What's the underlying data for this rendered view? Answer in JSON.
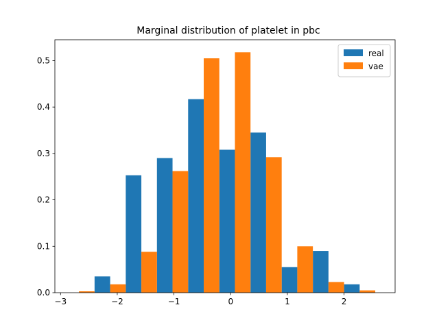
{
  "chart_data": {
    "type": "bar",
    "title": "Marginal distribution of platelet in pbc",
    "xlabel": "",
    "ylabel": "",
    "xlim": [
      -3.1,
      2.9
    ],
    "ylim": [
      0,
      0.545
    ],
    "xticks": [
      -3,
      -2,
      -1,
      0,
      1,
      2
    ],
    "xtick_labels": [
      "−3",
      "−2",
      "−1",
      "0",
      "1",
      "2"
    ],
    "yticks": [
      0.0,
      0.1,
      0.2,
      0.3,
      0.4,
      0.5
    ],
    "ytick_labels": [
      "0.0",
      "0.1",
      "0.2",
      "0.3",
      "0.4",
      "0.5"
    ],
    "grid": false,
    "legend_position": "top-right",
    "bin_edges": [
      -2.95,
      -2.4,
      -1.85,
      -1.3,
      -0.75,
      -0.2,
      0.35,
      0.9,
      1.45,
      2.0,
      2.55
    ],
    "series": [
      {
        "name": "real",
        "color": "#1f77b4",
        "values": [
          0.0,
          0.035,
          0.253,
          0.29,
          0.417,
          0.308,
          0.345,
          0.055,
          0.09,
          0.018
        ]
      },
      {
        "name": "vae",
        "color": "#ff7f0e",
        "values": [
          0.003,
          0.018,
          0.088,
          0.262,
          0.505,
          0.518,
          0.292,
          0.1,
          0.023,
          0.005
        ]
      }
    ]
  }
}
